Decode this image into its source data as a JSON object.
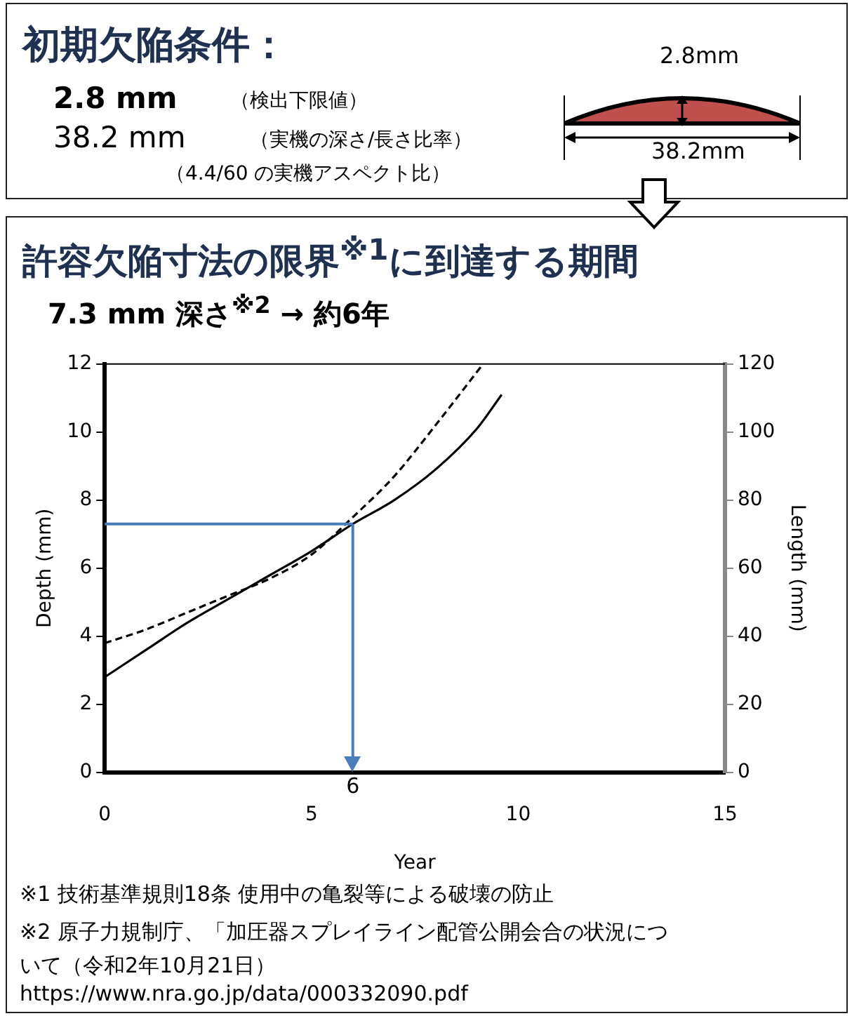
{
  "chart_data": {
    "type": "line",
    "title": "許容欠陥寸法の限界$^{※1}$に到達する期間",
    "subtitle": "7.3 mm 深さ$^{※2}$ → 約6年",
    "xlabel": "Year",
    "ylabel": "Depth (mm)",
    "y2label": "Length (mm)",
    "annotations": [
      "初期欠陥条件：",
      "2.8 mm",
      "（検出下限値）",
      "38.2 mm",
      "（実機の深さ/長さ比率）",
      "（4.4/60  の実機アスペクト比）",
      "2.8mm",
      "38.2mm",
      "※1  技術基準規則18条  使用中の亀裂等による破壊の防止",
      "※2  原子力規制庁、「加圧器スプレイライン配管公開会合の状況について（令和2年10月21日）",
      "https://www.nra.go.jp/data/000332090.pdf"
    ],
    "series": [
      {
        "color": "#000000",
        "line_style": "solid",
        "x": [
          0,
          1,
          2,
          3,
          4,
          5,
          6,
          7,
          8,
          9,
          9.6
        ],
        "values": [
          2.8,
          3.6,
          4.4,
          5.1,
          5.8,
          6.5,
          7.3,
          8.0,
          8.9,
          10.1,
          11.1
        ]
      },
      {
        "color": "#000000",
        "line_style": "dashed",
        "axis": "y2",
        "x": [
          0,
          1,
          2,
          3,
          4,
          5,
          6,
          7,
          8,
          9.15
        ],
        "values": [
          38,
          42,
          47,
          52,
          57,
          64,
          75,
          87,
          102,
          120
        ]
      }
    ],
    "xlim": [
      0,
      15
    ],
    "xticks": [
      0,
      5,
      10,
      15
    ],
    "ylim": [
      0,
      12
    ],
    "yticks": [
      0,
      2,
      4,
      6,
      8,
      10,
      12
    ],
    "y2lim": [
      0,
      120
    ],
    "y2ticks": [
      0,
      20,
      40,
      60,
      80,
      100,
      120
    ],
    "ref_lines": [
      {
        "axis": "y",
        "value": 7.3,
        "color": "#4a7ebb"
      },
      {
        "axis": "x",
        "value": 6,
        "label": "6",
        "color": "#4a7ebb"
      }
    ],
    "grid": false,
    "legend": false,
    "marker": "none"
  }
}
